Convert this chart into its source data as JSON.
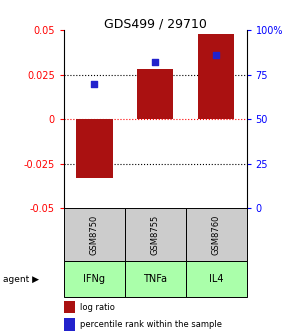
{
  "title": "GDS499 / 29710",
  "samples": [
    "GSM8750",
    "GSM8755",
    "GSM8760"
  ],
  "agents": [
    "IFNg",
    "TNFa",
    "IL4"
  ],
  "log_ratios": [
    -0.033,
    0.028,
    0.048
  ],
  "percentile_ranks": [
    0.7,
    0.82,
    0.86
  ],
  "ylim_left": [
    -0.05,
    0.05
  ],
  "ylim_right": [
    0.0,
    1.0
  ],
  "bar_color": "#aa1111",
  "dot_color": "#2222cc",
  "agent_color": "#aaffaa",
  "sample_color": "#cccccc",
  "title_fontsize": 9,
  "tick_fontsize": 7,
  "yticks_left": [
    -0.05,
    -0.025,
    0.0,
    0.025,
    0.05
  ],
  "ytick_labels_left": [
    "-0.05",
    "-0.025",
    "0",
    "0.025",
    "0.05"
  ],
  "ytick_labels_right": [
    "0",
    "25",
    "50",
    "75",
    "100%"
  ],
  "dotted_lines": [
    -0.025,
    0.0,
    0.025
  ]
}
